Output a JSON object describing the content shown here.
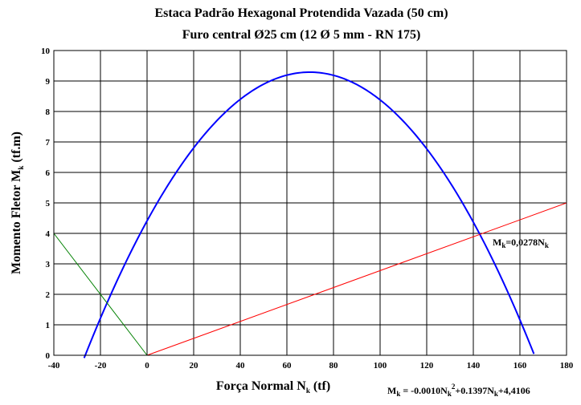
{
  "chart_data": {
    "type": "line",
    "title": "Estaca Padrão Hexagonal Protendida Vazada (50 cm)",
    "subtitle": "Furo central Ø25 cm (12 Ø 5 mm - RN 175)",
    "xlabel": {
      "main": "Força Normal N",
      "sub": "k",
      "unit": " (tf)"
    },
    "ylabel": {
      "main": "Momento Fletor M",
      "sub": "k",
      "unit": " (tf.m)"
    },
    "xlim": [
      -40,
      180
    ],
    "ylim": [
      0,
      10
    ],
    "x_ticks": [
      "-40",
      "-20",
      "0",
      "20",
      "40",
      "60",
      "80",
      "100",
      "120",
      "140",
      "160",
      "180"
    ],
    "y_ticks": [
      "0",
      "1",
      "2",
      "3",
      "4",
      "5",
      "6",
      "7",
      "8",
      "9",
      "10"
    ],
    "grid": true,
    "series": [
      {
        "name": "interaction-curve",
        "kind": "quadratic",
        "color": "#0000ff",
        "coefficients": {
          "a": -0.001,
          "b": 0.1397,
          "c": 4.4106
        },
        "x_range": [
          -27,
          166
        ]
      },
      {
        "name": "moment-line",
        "kind": "linear",
        "color": "#ff0000",
        "x": [
          0,
          180
        ],
        "y": [
          0,
          5.0
        ]
      },
      {
        "name": "tension-line",
        "kind": "linear",
        "color": "#008000",
        "x": [
          -40,
          0
        ],
        "y": [
          4.0,
          0
        ]
      }
    ],
    "annotations": {
      "linear_eq": {
        "prefix": "M",
        "sub": "k",
        "rest": "=0,0278N",
        "sub2": "k"
      },
      "quad_eq": {
        "p1": "M",
        "s1": "k",
        "p2": " = -0.0010N",
        "s2": "k",
        "sup": "2",
        "p3": "+0.1397N",
        "s3": "k",
        "p4": "+4,4106"
      }
    }
  }
}
